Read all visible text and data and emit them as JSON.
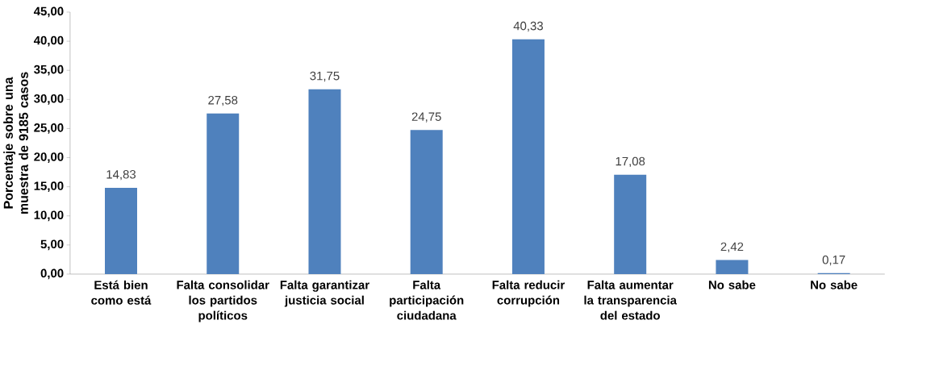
{
  "chart_data": {
    "type": "bar",
    "ylabel": "Porcentaje sobre una muestra de 9185 casos",
    "categories": [
      "Está bien como está",
      "Falta consolidar los partidos políticos",
      "Falta garantizar justicia social",
      "Falta participación ciudadana",
      "Falta reducir corrupción",
      "Falta aumentar la transparencia del estado",
      "No sabe",
      "No sabe"
    ],
    "values": [
      14.83,
      27.58,
      31.75,
      24.75,
      40.33,
      17.08,
      2.42,
      0.17
    ],
    "value_labels": [
      "14,83",
      "27,58",
      "31,75",
      "24,75",
      "40,33",
      "17,08",
      "2,42",
      "0,17"
    ],
    "color": "#4f81bd",
    "ylim": [
      0,
      45
    ],
    "yticks": [
      {
        "value": 0,
        "label": "0,00"
      },
      {
        "value": 5,
        "label": "5,00"
      },
      {
        "value": 10,
        "label": "10,00"
      },
      {
        "value": 15,
        "label": "15,00"
      },
      {
        "value": 20,
        "label": "20,00"
      },
      {
        "value": 25,
        "label": "25,00"
      },
      {
        "value": 30,
        "label": "30,00"
      },
      {
        "value": 35,
        "label": "35,00"
      },
      {
        "value": 40,
        "label": "40,00"
      },
      {
        "value": 45,
        "label": "45,00"
      }
    ],
    "grid": false
  }
}
